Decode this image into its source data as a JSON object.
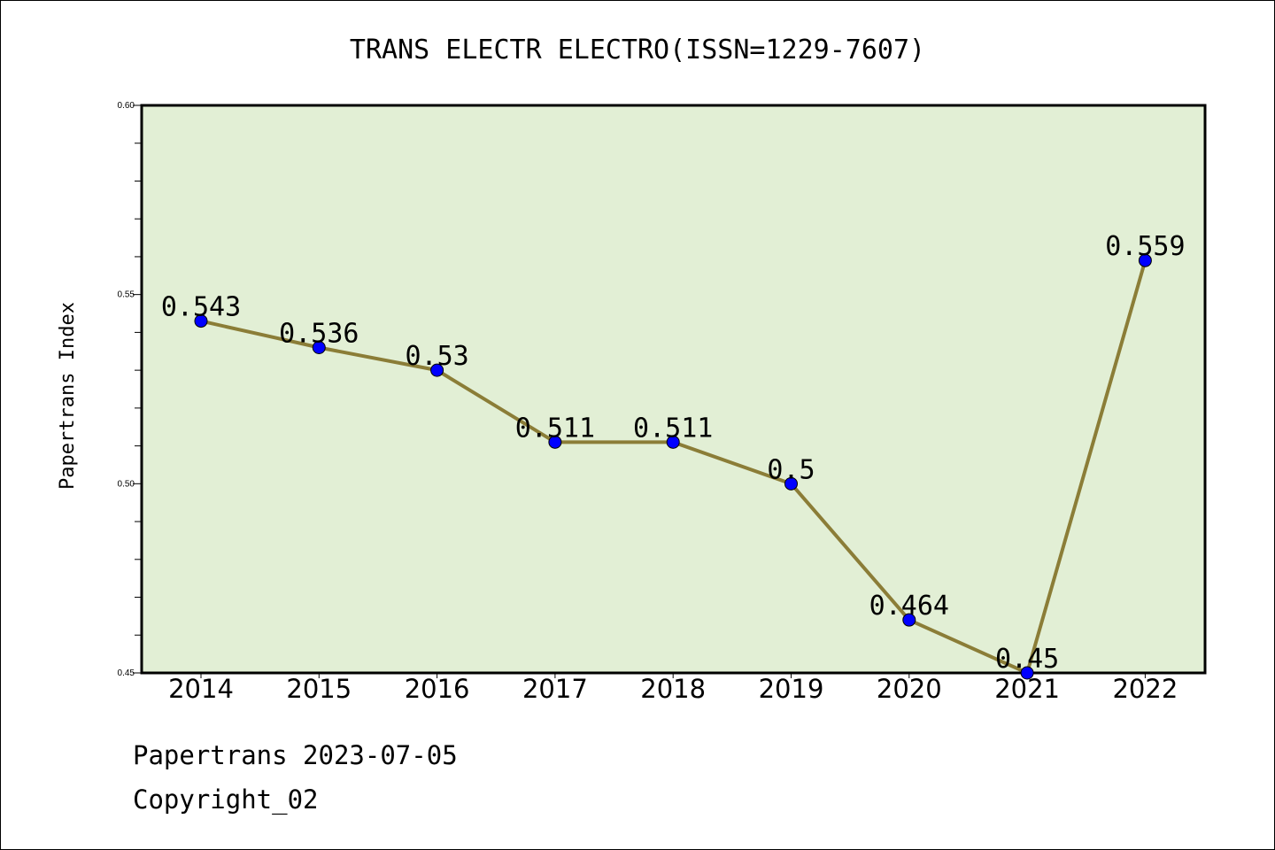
{
  "chart_data": {
    "type": "line",
    "title": "TRANS ELECTR ELECTRO(ISSN=1229-7607)",
    "xlabel": "",
    "ylabel": "Papertrans Index",
    "categories": [
      "2014",
      "2015",
      "2016",
      "2017",
      "2018",
      "2019",
      "2020",
      "2021",
      "2022"
    ],
    "series": [
      {
        "values": [
          0.543,
          0.536,
          0.53,
          0.511,
          0.511,
          0.5,
          0.464,
          0.45,
          0.559
        ],
        "labels": [
          "0.543",
          "0.536",
          "0.53",
          "0.511",
          "0.511",
          "0.5",
          "0.464",
          "0.45",
          "0.559"
        ]
      }
    ],
    "ylim": [
      0.45,
      0.6
    ],
    "yticks": [
      "0.45",
      "0.50",
      "0.55",
      "0.60"
    ],
    "grid": false,
    "colors": {
      "plot_bg": "#e2efd5",
      "line": "#8b7d37",
      "marker": "#0000ff"
    }
  },
  "footer": {
    "line1": "Papertrans 2023-07-05",
    "line2": "Copyright_02"
  }
}
